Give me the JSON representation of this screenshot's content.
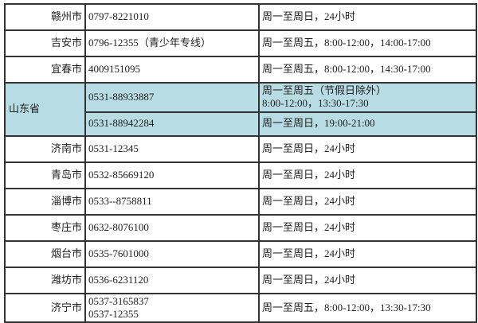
{
  "table": {
    "description_semantic": "hotline-contact-table",
    "highlight_color": "#b8dce3",
    "border_color": "#333333",
    "rows": [
      {
        "region": "赣州市",
        "phone_lines": [
          "0797-8221010"
        ],
        "hours_lines": [
          "周一至周日，24小时"
        ],
        "highlight": false
      },
      {
        "region": "吉安市",
        "phone_lines": [
          "0796-12355（青少年专线）"
        ],
        "hours_lines": [
          "周一至周五，8:00-12:00，14:00-17:00"
        ],
        "highlight": false
      },
      {
        "region": "宜春市",
        "phone_lines": [
          "4009151095"
        ],
        "hours_lines": [
          "周一至周五，8:00-12:00，14:30-17:00"
        ],
        "highlight": false
      },
      {
        "region": "山东省",
        "region_rowspan": 2,
        "region_style": "province",
        "phone_lines": [
          "0531-88933887"
        ],
        "hours_lines": [
          "周一至周五（节假日除外）",
          "8:00-12:00，13:30-17:30"
        ],
        "highlight": true
      },
      {
        "region_merged": true,
        "phone_lines": [
          "0531-88942284"
        ],
        "hours_lines": [
          "周一至周日，19:00-21:00"
        ],
        "highlight": true
      },
      {
        "region": "济南市",
        "phone_lines": [
          "0531-12345"
        ],
        "hours_lines": [
          "周一至周日，24小时"
        ],
        "highlight": false
      },
      {
        "region": "青岛市",
        "phone_lines": [
          "0532-85669120"
        ],
        "hours_lines": [
          "周一至周日，24小时"
        ],
        "highlight": false
      },
      {
        "region": "淄博市",
        "phone_lines": [
          "0533--8758811"
        ],
        "hours_lines": [
          "周一至周日，24小时"
        ],
        "highlight": false
      },
      {
        "region": "枣庄市",
        "phone_lines": [
          "0632-8076100"
        ],
        "hours_lines": [
          "周一至周日，24小时"
        ],
        "highlight": false
      },
      {
        "region": "烟台市",
        "phone_lines": [
          "0535-7601000"
        ],
        "hours_lines": [
          "周一至周日，24小时"
        ],
        "highlight": false
      },
      {
        "region": "潍坊市",
        "phone_lines": [
          "0536-6231120"
        ],
        "hours_lines": [
          "周一至周日，24小时"
        ],
        "highlight": false
      },
      {
        "region": "济宁市",
        "phone_lines": [
          "0537-3165837",
          "0537-12355"
        ],
        "hours_lines": [
          "周一至周五，8:00-12:00，13:30-17:30"
        ],
        "highlight": false
      }
    ]
  }
}
